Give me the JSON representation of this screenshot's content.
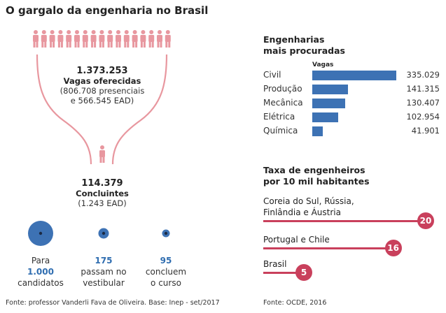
{
  "title": "O gargalo da engenharia no Brasil",
  "funnel": {
    "vagas_total": "1.373.253",
    "vagas_label": "Vagas oferecidas",
    "vagas_detail_1": "(806.708 presenciais",
    "vagas_detail_2": "e 566.545 EAD)",
    "concluintes_total": "114.379",
    "concluintes_label": "Concluintes",
    "concluintes_detail": "(1.243 EAD)",
    "accent_color": "#e8979f",
    "person_icon": "person-icon"
  },
  "circles": [
    {
      "line1": "Para",
      "value": "1.000",
      "line3": "candidatos",
      "ratio": 1000
    },
    {
      "line1": "",
      "value": "175",
      "line2b": "passam no",
      "line3": "vestibular",
      "ratio": 175
    },
    {
      "line1": "",
      "value": "95",
      "line2b": "concluem",
      "line3": "o curso",
      "ratio": 95
    }
  ],
  "source_left": "Fonte: professor Vanderli Fava de Oliveira. Base: Inep - set/2017",
  "source_right": "Fonte: OCDE, 2016",
  "engineering": {
    "heading_1": "Engenharias",
    "heading_2": "mais procuradas",
    "column_header": "Vagas"
  },
  "rates": {
    "heading_1": "Taxa de engenheiros",
    "heading_2": "por 10 mil habitantes"
  },
  "chart_data": [
    {
      "type": "bar",
      "title": "Engenharias mais procuradas",
      "ylabel": "Vagas",
      "categories": [
        "Civil",
        "Produção",
        "Mecânica",
        "Elétrica",
        "Química"
      ],
      "values": [
        335029,
        141315,
        130407,
        102954,
        41901
      ],
      "value_labels": [
        "335.029",
        "141.315",
        "130.407",
        "102.954",
        "41.901"
      ],
      "bar_color": "#3d72b4"
    },
    {
      "type": "bar",
      "title": "Taxa de engenheiros por 10 mil habitantes",
      "categories": [
        "Coreia do Sul, Rússia, Finlândia e Áustria",
        "Portugal e Chile",
        "Brasil"
      ],
      "category_lines": [
        [
          "Coreia do Sul, Rússia,",
          "Finlândia e Áustria"
        ],
        [
          "Portugal e Chile"
        ],
        [
          "Brasil"
        ]
      ],
      "values": [
        20,
        16,
        5
      ],
      "bar_color": "#c9405c"
    }
  ]
}
